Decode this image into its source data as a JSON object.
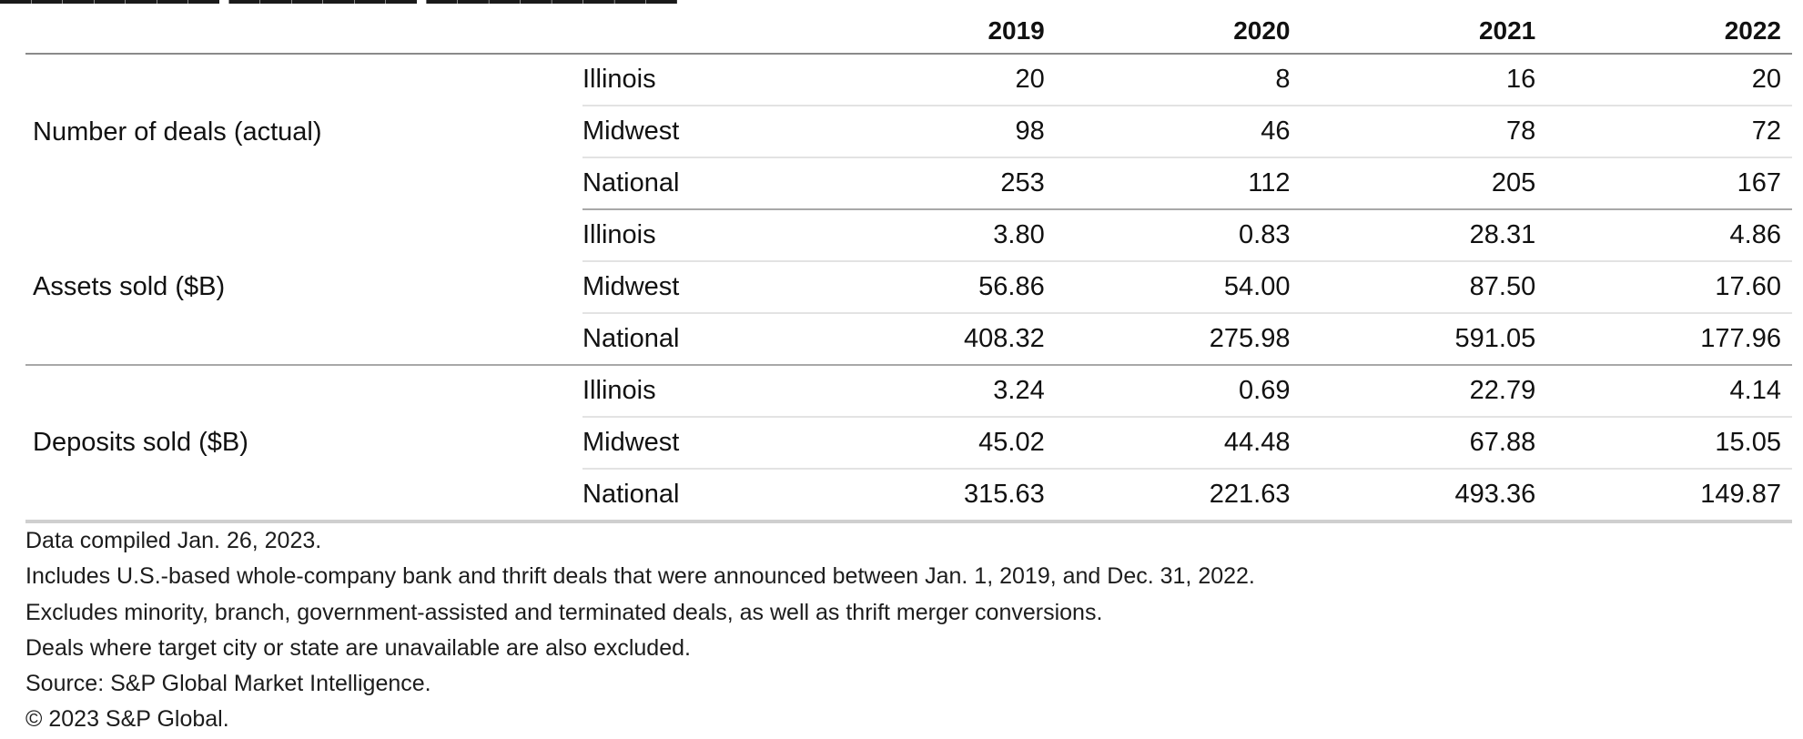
{
  "chart_data": {
    "type": "table",
    "columns": [
      "2019",
      "2020",
      "2021",
      "2022"
    ],
    "groups": [
      {
        "metric": "Number of deals (actual)",
        "rows": [
          {
            "region": "Illinois",
            "values": [
              "20",
              "8",
              "16",
              "20"
            ]
          },
          {
            "region": "Midwest",
            "values": [
              "98",
              "46",
              "78",
              "72"
            ]
          },
          {
            "region": "National",
            "values": [
              "253",
              "112",
              "205",
              "167"
            ]
          }
        ]
      },
      {
        "metric": "Assets sold ($B)",
        "rows": [
          {
            "region": "Illinois",
            "values": [
              "3.80",
              "0.83",
              "28.31",
              "4.86"
            ]
          },
          {
            "region": "Midwest",
            "values": [
              "56.86",
              "54.00",
              "87.50",
              "17.60"
            ]
          },
          {
            "region": "National",
            "values": [
              "408.32",
              "275.98",
              "591.05",
              "177.96"
            ]
          }
        ]
      },
      {
        "metric": "Deposits sold ($B)",
        "rows": [
          {
            "region": "Illinois",
            "values": [
              "3.24",
              "0.69",
              "22.79",
              "4.14"
            ]
          },
          {
            "region": "Midwest",
            "values": [
              "45.02",
              "44.48",
              "67.88",
              "15.05"
            ]
          },
          {
            "region": "National",
            "values": [
              "315.63",
              "221.63",
              "493.36",
              "149.87"
            ]
          }
        ]
      }
    ]
  },
  "notes": [
    "Data compiled Jan. 26, 2023.",
    "Includes U.S.-based whole-company bank and thrift deals that were announced between Jan. 1, 2019, and Dec. 31, 2022.",
    "Excludes minority, branch, government-assisted and terminated deals, as well as thrift merger conversions.",
    "Deals where target city or state are unavailable are also excluded.",
    "Source: S&P Global Market Intelligence.",
    "© 2023 S&P Global."
  ]
}
